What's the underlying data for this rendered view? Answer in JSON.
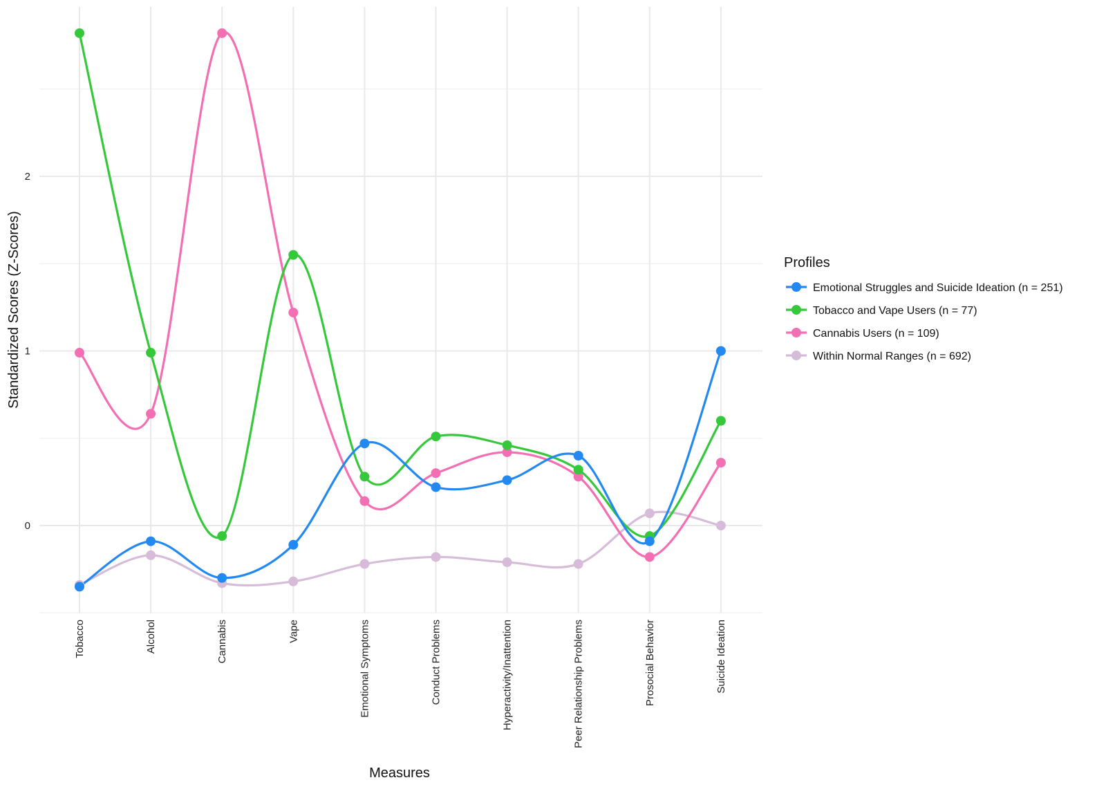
{
  "chart_data": {
    "type": "line",
    "title": "",
    "xlabel": "Measures",
    "ylabel": "Standardized Scores (Z-Scores)",
    "categories": [
      "Tobacco",
      "Alcohol",
      "Cannabis",
      "Vape",
      "Emotional Symptoms",
      "Conduct Problems",
      "Hyperactivity/Inattention",
      "Peer Relationship Problems",
      "Prosocial Behavior",
      "Suicide Ideation"
    ],
    "ylim": [
      -0.5,
      2.95
    ],
    "yticks": [
      "0",
      "1",
      "2"
    ],
    "ytick_values": [
      0,
      1,
      2
    ],
    "grid": true,
    "legend_title": "Profiles",
    "legend_position": "right",
    "series": [
      {
        "name": "Emotional Struggles and Suicide Ideation (n = 251)",
        "color": "#2389f0",
        "values": [
          -0.35,
          -0.09,
          -0.3,
          -0.11,
          0.47,
          0.22,
          0.26,
          0.4,
          -0.09,
          1.0
        ]
      },
      {
        "name": "Tobacco and Vape Users (n = 77)",
        "color": "#35c83a",
        "values": [
          2.82,
          0.99,
          -0.06,
          1.55,
          0.28,
          0.51,
          0.46,
          0.32,
          -0.06,
          0.6
        ]
      },
      {
        "name": "Cannabis Users (n = 109)",
        "color": "#f36eb2",
        "values": [
          0.99,
          0.64,
          2.82,
          1.22,
          0.14,
          0.3,
          0.42,
          0.28,
          -0.18,
          0.36
        ]
      },
      {
        "name": "Within Normal Ranges (n = 692)",
        "color": "#d7bcd9",
        "values": [
          -0.34,
          -0.17,
          -0.33,
          -0.32,
          -0.22,
          -0.18,
          -0.21,
          -0.22,
          0.07,
          0.0
        ]
      }
    ]
  }
}
